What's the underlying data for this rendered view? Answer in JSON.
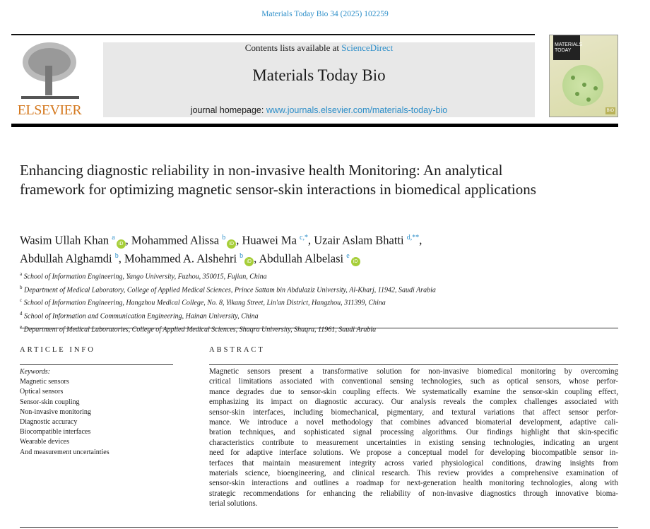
{
  "citation": "Materials Today Bio 34 (2025) 102259",
  "header": {
    "publisher_logo_text": "ELSEVIER",
    "contents_prefix": "Contents lists available at ",
    "contents_link": "ScienceDirect",
    "journal_title": "Materials Today Bio",
    "homepage_prefix": "journal homepage: ",
    "homepage_link": "www.journals.elsevier.com/materials-today-bio",
    "cover_text": "MATERIALS TODAY",
    "cover_badge": "BIO"
  },
  "title": "Enhancing diagnostic reliability in non-invasive health Monitoring: An analytical framework for optimizing magnetic sensor-skin interactions in biomedical applications",
  "authors": [
    {
      "name": "Wasim Ullah Khan",
      "sup": "a",
      "orcid": true,
      "sep": ", "
    },
    {
      "name": "Mohammed Alissa",
      "sup": "b",
      "orcid": true,
      "sep": ", "
    },
    {
      "name": "Huawei Ma",
      "sup": "c,*",
      "orcid": false,
      "sep": ", "
    },
    {
      "name": "Uzair Aslam Bhatti",
      "sup": "d,**",
      "orcid": false,
      "sep": ","
    },
    {
      "name": "Abdullah Alghamdi",
      "sup": "b",
      "orcid": false,
      "sep": ", "
    },
    {
      "name": "Mohammed A. Alshehri",
      "sup": "b",
      "orcid": true,
      "sep": ", "
    },
    {
      "name": "Abdullah Albelasi",
      "sup": "e",
      "orcid": true,
      "sep": ""
    }
  ],
  "orcid_label": "iD",
  "affiliations": [
    {
      "key": "a",
      "text": "School of Information Engineering, Yango University, Fuzhou, 350015, Fujian, China"
    },
    {
      "key": "b",
      "text": "Department of Medical Laboratory, College of Applied Medical Sciences, Prince Sattam bin Abdulaziz University, Al-Kharj, 11942, Saudi Arabia"
    },
    {
      "key": "c",
      "text": "School of Information Engineering, Hangzhou Medical College, No. 8, Yikang Street, Lin'an District, Hangzhou, 311399, China"
    },
    {
      "key": "d",
      "text": "School of Information and Communication Engineering, Hainan University, China"
    },
    {
      "key": "e",
      "text": "Department of Medical Laboratories, College of Applied Medical Sciences, Shaqra University, Shaqra, 11961, Saudi Arabia"
    }
  ],
  "article_info": {
    "heading": "ARTICLE INFO",
    "keywords_label": "Keywords:",
    "keywords": [
      "Magnetic sensors",
      "Optical sensors",
      "Sensor-skin coupling",
      "Non-invasive monitoring",
      "Diagnostic accuracy",
      "Biocompatible interfaces",
      "Wearable devices",
      "And measurement uncertainties"
    ]
  },
  "abstract": {
    "heading": "ABSTRACT",
    "lines": [
      "Magnetic sensors present a transformative solution for non-invasive biomedical monitoring by overcoming",
      "critical limitations associated with conventional sensing technologies, such as optical sensors, whose perfor-",
      "mance degrades due to sensor-skin coupling effects. We systematically examine the sensor-skin coupling effect,",
      "emphasizing its impact on diagnostic accuracy. Our analysis reveals the complex challenges associated with",
      "sensor-skin interfaces, including biomechanical, pigmentary, and textural variations that affect sensor perfor-",
      "mance. We introduce a novel methodology that combines advanced biomaterial development, adaptive cali-",
      "bration techniques, and sophisticated signal processing algorithms. Our findings highlight that skin-specific",
      "characteristics contribute to measurement uncertainties in existing sensing technologies, indicating an urgent",
      "need for adaptive interface solutions. We propose a conceptual model for developing biocompatible sensor in-",
      "terfaces that maintain measurement integrity across varied physiological conditions, drawing insights from",
      "materials science, bioengineering, and clinical research. This review provides a comprehensive examination of",
      "sensor-skin interactions and outlines a roadmap for next-generation health monitoring technologies, along with",
      "strategic recommendations for enhancing the reliability of non-invasive diagnostics through innovative bioma-",
      "terial solutions."
    ]
  },
  "colors": {
    "link": "#2e8fc9",
    "elsevier_orange": "#d4781e",
    "orcid_green": "#a6ce39",
    "banner_gray": "#e8e8e8"
  }
}
